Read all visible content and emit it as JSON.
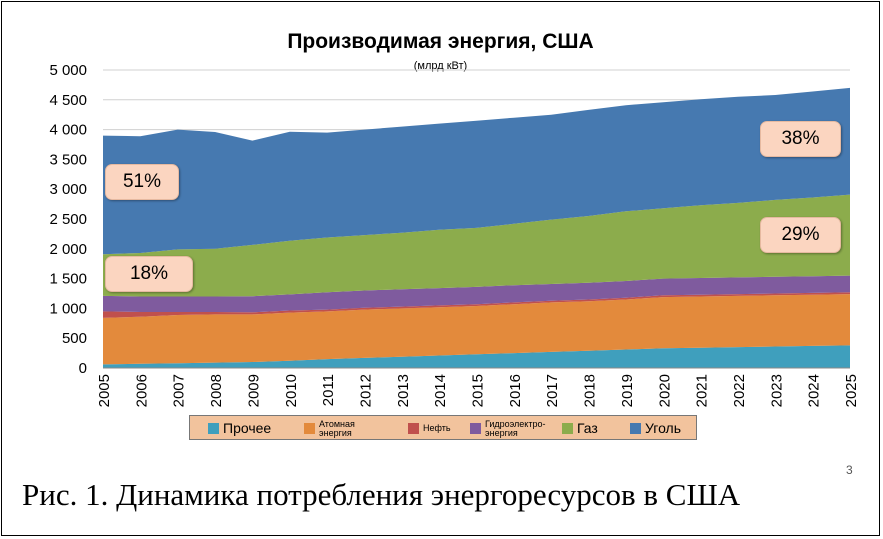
{
  "chart_data": {
    "type": "area",
    "stacked": true,
    "title": "Производимая энергия, США",
    "subtitle": "(млрд кВт)",
    "x": [
      "2005",
      "2006",
      "2007",
      "2008",
      "2009",
      "2010",
      "2011",
      "2012",
      "2013",
      "2014",
      "2015",
      "2016",
      "2017",
      "2018",
      "2019",
      "2020",
      "2021",
      "2022",
      "2023",
      "2024",
      "2025"
    ],
    "ylim": [
      0,
      5000
    ],
    "yticks": [
      "0",
      "500",
      "1 000",
      "1 500",
      "2 000",
      "2 500",
      "3 000",
      "3 500",
      "4 000",
      "4 500",
      "5 000"
    ],
    "grid": true,
    "legend_position": "bottom",
    "series": [
      {
        "name": "Прочее",
        "color": "#3f9fbd",
        "values": [
          60,
          70,
          80,
          90,
          100,
          120,
          150,
          170,
          190,
          210,
          230,
          250,
          270,
          290,
          310,
          330,
          340,
          350,
          360,
          370,
          380
        ]
      },
      {
        "name": "Атомная энергия",
        "color": "#e38a3c",
        "values": [
          780,
          790,
          810,
          810,
          800,
          810,
          800,
          810,
          810,
          810,
          810,
          820,
          830,
          830,
          840,
          860,
          860,
          860,
          860,
          860,
          860
        ]
      },
      {
        "name": "Нефть",
        "color": "#c0504d",
        "values": [
          110,
          80,
          50,
          40,
          35,
          35,
          30,
          30,
          30,
          30,
          30,
          30,
          30,
          30,
          30,
          30,
          30,
          30,
          30,
          30,
          30
        ]
      },
      {
        "name": "Гидроэлектро-энергия",
        "color": "#7f5b9e",
        "values": [
          260,
          260,
          260,
          260,
          270,
          270,
          290,
          290,
          290,
          290,
          290,
          290,
          280,
          280,
          280,
          280,
          280,
          280,
          280,
          280,
          280
        ]
      },
      {
        "name": "Газ",
        "color": "#8cac4c",
        "values": [
          700,
          730,
          790,
          800,
          860,
          900,
          920,
          930,
          950,
          980,
          990,
          1030,
          1080,
          1120,
          1170,
          1180,
          1220,
          1250,
          1290,
          1320,
          1360
        ]
      },
      {
        "name": "Уголь",
        "color": "#4679b0",
        "values": [
          1990,
          1960,
          2010,
          1960,
          1750,
          1830,
          1760,
          1770,
          1780,
          1780,
          1800,
          1780,
          1760,
          1780,
          1780,
          1780,
          1780,
          1780,
          1760,
          1780,
          1790
        ]
      }
    ],
    "annotations": [
      {
        "text": "51%"
      },
      {
        "text": "18%"
      },
      {
        "text": "38%"
      },
      {
        "text": "29%"
      }
    ]
  },
  "legend": [
    {
      "label": "Прочее",
      "color": "#3f9fbd",
      "size": "big"
    },
    {
      "label": "Атомная энергия",
      "color": "#e38a3c",
      "size": "small"
    },
    {
      "label": "Нефть",
      "color": "#c0504d",
      "size": "small"
    },
    {
      "label": "Гидроэлектро- энергия",
      "color": "#7f5b9e",
      "size": "small"
    },
    {
      "label": "Газ",
      "color": "#8cac4c",
      "size": "big"
    },
    {
      "label": "Уголь",
      "color": "#4679b0",
      "size": "big"
    }
  ],
  "page_number": "3",
  "caption": "Рис. 1. Динамика потребления энергоресурсов в США"
}
